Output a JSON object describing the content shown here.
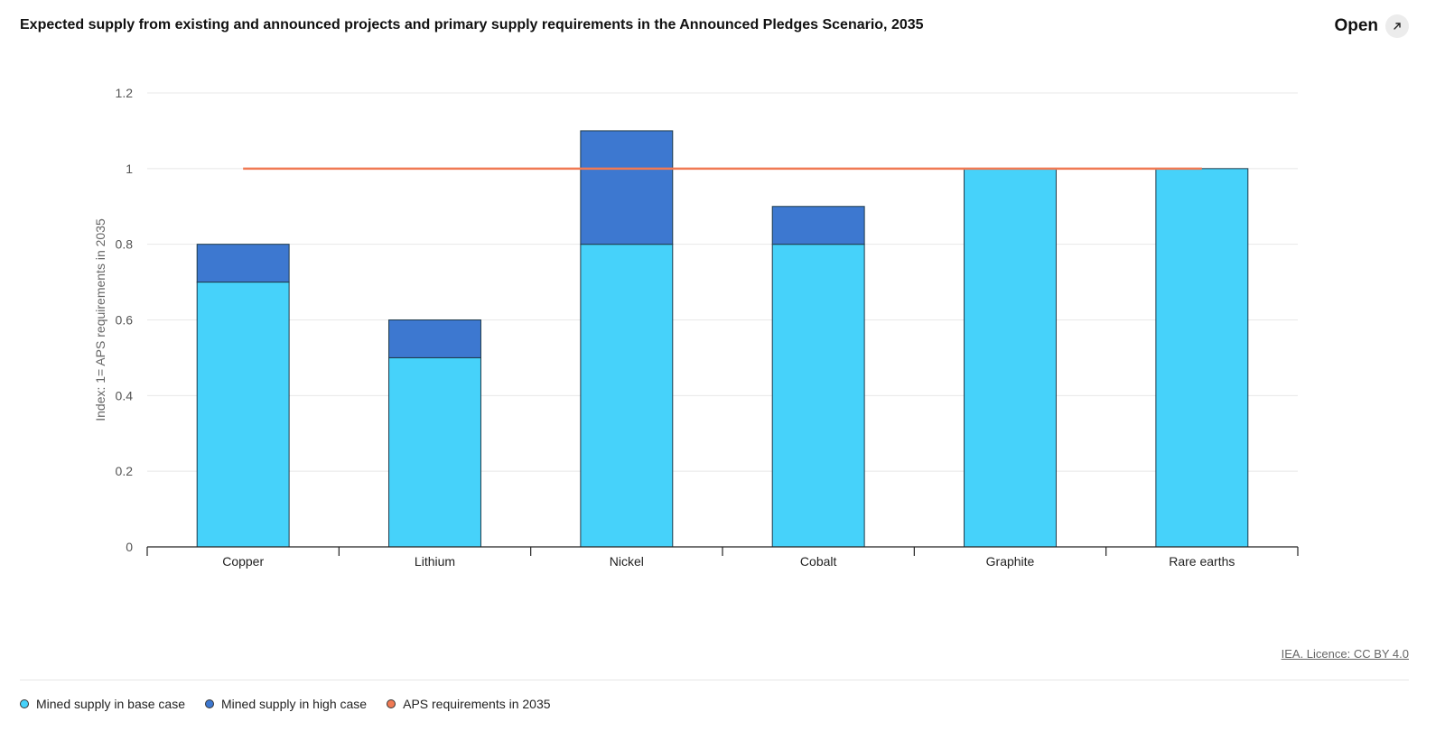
{
  "header": {
    "title": "Expected supply from existing and announced projects and primary supply requirements in the Announced Pledges Scenario, 2035",
    "open_label": "Open",
    "open_icon": "external-link-icon"
  },
  "colors": {
    "base": "#46d2fa",
    "high": "#3d78d0",
    "requirement": "#f07a54",
    "outline": "#1f3a4a"
  },
  "chart_data": {
    "type": "bar",
    "stacked": true,
    "categories": [
      "Copper",
      "Lithium",
      "Nickel",
      "Cobalt",
      "Graphite",
      "Rare earths"
    ],
    "series": [
      {
        "name": "Mined supply in base case",
        "values": [
          0.7,
          0.5,
          0.8,
          0.8,
          1.0,
          1.0
        ]
      },
      {
        "name": "Mined supply in high case",
        "values": [
          0.1,
          0.1,
          0.3,
          0.1,
          0.0,
          0.0
        ]
      }
    ],
    "lines": [
      {
        "name": "APS requirements in 2035",
        "value": 1
      }
    ],
    "ylabel": "Index: 1= APS requirements in 2035",
    "xlabel": "",
    "ylim": [
      0,
      1.2
    ],
    "yticks": [
      "0",
      "0.2",
      "0.4",
      "0.6",
      "0.8",
      "1",
      "1.2"
    ],
    "ytick_values": [
      0,
      0.2,
      0.4,
      0.6,
      0.8,
      1.0,
      1.2
    ],
    "grid": true,
    "legend_position": "bottom-left"
  },
  "legend": [
    {
      "label": "Mined supply in base case",
      "color": "#46d2fa"
    },
    {
      "label": "Mined supply in high case",
      "color": "#3d78d0"
    },
    {
      "label": "APS requirements in 2035",
      "color": "#f07a54"
    }
  ],
  "footer": {
    "credit": "IEA. Licence: CC BY 4.0"
  }
}
